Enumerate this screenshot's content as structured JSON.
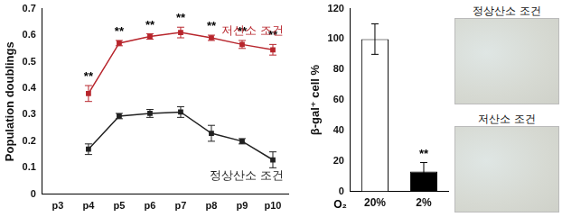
{
  "chart_data": [
    {
      "type": "line",
      "y_label": "Population doublings",
      "categories": [
        "p3",
        "p4",
        "p5",
        "p6",
        "p7",
        "p8",
        "p9",
        "p10"
      ],
      "series": [
        {
          "name": "저산소 조건",
          "color": "#b8262d",
          "marker": "square",
          "line_style": "solid",
          "values": [
            null,
            0.38,
            0.57,
            0.595,
            0.61,
            0.59,
            0.565,
            0.545
          ],
          "errors": [
            null,
            0.03,
            0.01,
            0.01,
            0.02,
            0.01,
            0.015,
            0.02
          ]
        },
        {
          "name": "정상산소 조건",
          "color": "#222222",
          "marker": "square",
          "line_style": "solid",
          "values": [
            null,
            0.17,
            0.295,
            0.305,
            0.31,
            0.23,
            0.2,
            0.13
          ],
          "errors": [
            null,
            0.02,
            0.01,
            0.015,
            0.02,
            0.03,
            0.01,
            0.03
          ]
        }
      ],
      "ylim": [
        0,
        0.7
      ],
      "yticks": [
        0,
        0.1,
        0.2,
        0.3,
        0.4,
        0.5,
        0.6,
        0.7
      ],
      "grid": false,
      "annotations": [
        {
          "category": "p4",
          "text": "**"
        },
        {
          "category": "p5",
          "text": "**"
        },
        {
          "category": "p6",
          "text": "**"
        },
        {
          "category": "p7",
          "text": "**"
        },
        {
          "category": "p8",
          "text": "**"
        },
        {
          "category": "p9",
          "text": "**"
        },
        {
          "category": "p10",
          "text": "**"
        }
      ]
    },
    {
      "type": "bar",
      "y_label": "β-gal⁺ cell %",
      "x_label": "O₂",
      "categories": [
        "20%",
        "2%"
      ],
      "values": [
        100,
        13
      ],
      "errors": [
        10,
        6
      ],
      "colors": [
        "#ffffff",
        "#000000"
      ],
      "ylim": [
        0,
        120
      ],
      "yticks": [
        0,
        20,
        40,
        60,
        80,
        100,
        120
      ],
      "grid": false,
      "annotations": [
        {
          "category": "2%",
          "text": "**"
        }
      ]
    }
  ],
  "images": [
    {
      "label": "정상산소 조건"
    },
    {
      "label": "저산소 조건"
    }
  ]
}
